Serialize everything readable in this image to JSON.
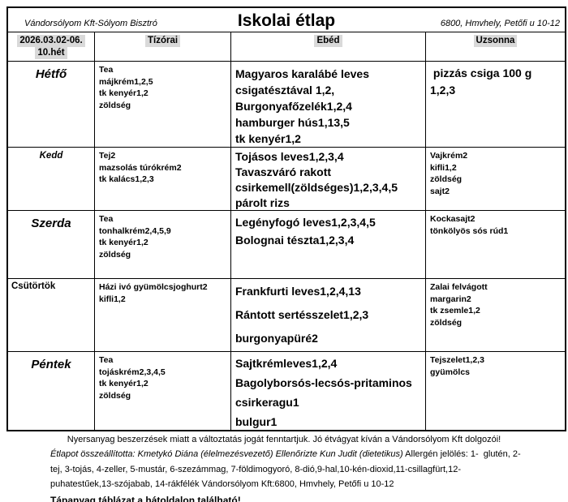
{
  "header": {
    "company": "Vándorsólyom Kft-Sólyom Bisztró",
    "title": "Iskolai étlap",
    "address": "6800, Hmvhely, Petőfi u 10-12"
  },
  "column_headers": {
    "week_line1": "2026.03.02-06.",
    "week_line2": "10.hét",
    "tizorai": "Tízórai",
    "ebed": "Ebéd",
    "uzsonna": "Uzsonna"
  },
  "colors": {
    "highlight": "#d9d9d9",
    "border": "#000000"
  },
  "days": [
    {
      "name": "Hétfő",
      "tizorai": [
        "Tea",
        "májkrém1,2,5",
        "tk kenyér1,2",
        "zöldség"
      ],
      "ebed": [
        "Magyaros karalábé leves",
        "csigatésztával 1,2,",
        "Burgonyafőzelék1,2,4",
        "hamburger hús1,13,5",
        "tk kenyér1,2"
      ],
      "uzsonna": [
        " pizzás csiga 100 g",
        "1,2,3"
      ]
    },
    {
      "name": "Kedd",
      "tizorai": [
        "Tej2",
        "mazsolás túrókrém2",
        "tk kalács1,2,3"
      ],
      "ebed": [
        "Tojásos leves1,2,3,4",
        "Tavaszváró rakott",
        "csirkemell(zöldséges)1,2,3,4,5",
        "párolt rizs"
      ],
      "uzsonna": [
        "Vajkrém2",
        "kifli1,2",
        "zöldség",
        "sajt2"
      ]
    },
    {
      "name": "Szerda",
      "tizorai": [
        "Tea",
        "tonhalkrém2,4,5,9",
        "tk kenyér1,2",
        "zöldség"
      ],
      "ebed": [
        "Legényfogó leves1,2,3,4,5",
        "Bolognai tészta1,2,3,4"
      ],
      "uzsonna": [
        "Kockasajt2",
        "tönkölyös sós rúd1"
      ]
    },
    {
      "name": "Csütörtök",
      "tizorai": [
        "Házi ivó gyümölcsjoghurt2",
        "kifli1,2"
      ],
      "ebed": [
        "Frankfurti leves1,2,4,13",
        "Rántott sertésszelet1,2,3",
        "burgonyapüré2"
      ],
      "uzsonna": [
        "Zalai felvágott",
        "margarin2",
        "tk zsemle1,2",
        "zöldség"
      ]
    },
    {
      "name": "Péntek",
      "tizorai": [
        "Tea",
        "tojáskrém2,3,4,5",
        "tk kenyér1,2",
        "zöldség"
      ],
      "ebed": [
        "Sajtkrémleves1,2,4",
        "Bagolyborsós-lecsós-pritaminos",
        "csirkeragu1",
        "bulgur1"
      ],
      "uzsonna": [
        "Tejszelet1,2,3",
        "gyümölcs"
      ]
    }
  ],
  "footer": {
    "notice": "Nyersanyag beszerzések miatt a változtatás jogát fenntartjuk. Jó étvágyat kíván a Vándorsólyom Kft dolgozói!",
    "credits_italic": "Étlapot összeállította: Kmetykó Diána (élelmezésvezető) Ellenőrizte Kun Judit (dietetikus)",
    "allergen_line1": " Allergén jelölés: 1-  glutén, 2-",
    "allergen_line2": "tej, 3-tojás, 4-zeller, 5-mustár, 6-szezámmag, 7-földimogyoró, 8-dió,9-hal,10-kén-dioxid,11-csillagfürt,12-",
    "allergen_line3": "puhatestűek,13-szójabab, 14-rákfélék Vándorsólyom Kft:6800, Hmvhely, Petőfi u 10-12",
    "nutrition_note": "Tápanyag táblázat a hátoldalon található!"
  }
}
